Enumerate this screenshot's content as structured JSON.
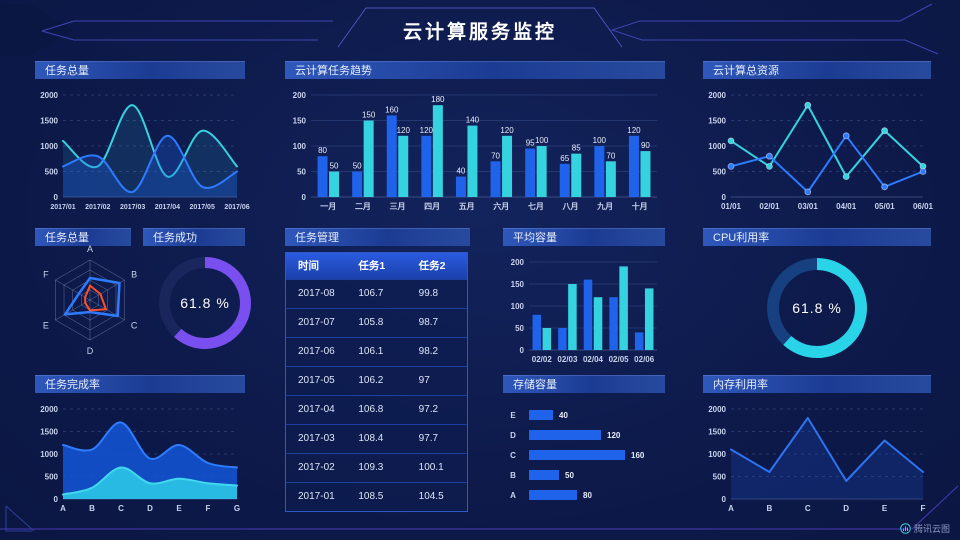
{
  "header": {
    "title": "云计算服务监控"
  },
  "footer": {
    "brand": "腾讯云图"
  },
  "colors": {
    "background": "#0d1a4b",
    "panel_title_bar": "#2f58bb",
    "blue": "#1e63ea",
    "cyan": "#35d3df",
    "purple": "#7a4ff0",
    "orange": "#ff4f2a",
    "table_border": "#2e57c8"
  },
  "panels": {
    "task_total_top": {
      "title": "任务总量"
    },
    "task_trend": {
      "title": "云计算任务趋势"
    },
    "total_resources": {
      "title": "云计算总资源"
    },
    "task_total_radar": {
      "title": "任务总量"
    },
    "task_success": {
      "title": "任务成功",
      "value_label": "61.8 %"
    },
    "task_manage": {
      "title": "任务管理",
      "table": {
        "headers": [
          "时间",
          "任务1",
          "任务2"
        ],
        "rows": [
          [
            "2017-08",
            "106.7",
            "99.8"
          ],
          [
            "2017-07",
            "105.8",
            "98.7"
          ],
          [
            "2017-06",
            "106.1",
            "98.2"
          ],
          [
            "2017-05",
            "106.2",
            "97"
          ],
          [
            "2017-04",
            "106.8",
            "97.2"
          ],
          [
            "2017-03",
            "108.4",
            "97.7"
          ],
          [
            "2017-02",
            "109.3",
            "100.1"
          ],
          [
            "2017-01",
            "108.5",
            "104.5"
          ]
        ]
      }
    },
    "avg_capacity": {
      "title": "平均容量"
    },
    "cpu_usage": {
      "title": "CPU利用率",
      "value_label": "61.8 %"
    },
    "task_completion": {
      "title": "任务完成率"
    },
    "storage": {
      "title": "存储容量"
    },
    "memory": {
      "title": "内存利用率"
    }
  },
  "chart_data": [
    {
      "id": "task-total-line",
      "title": "任务总量",
      "type": "line",
      "smooth": true,
      "grid": "dashed",
      "x": [
        "2017/01",
        "2017/02",
        "2017/03",
        "2017/04",
        "2017/05",
        "2017/06"
      ],
      "yticks": [
        0,
        500,
        1000,
        1500,
        2000
      ],
      "xfont": 7,
      "series": [
        {
          "name": "cyan",
          "color": "#35d3df",
          "width": 2,
          "values": [
            1100,
            600,
            1800,
            400,
            1300,
            600
          ],
          "fill": "rgba(53,200,230,0.12)"
        },
        {
          "name": "blue",
          "color": "#2e7bff",
          "width": 2,
          "values": [
            600,
            800,
            100,
            1200,
            200,
            500
          ],
          "fill": "rgba(30,95,230,0.30)"
        }
      ]
    },
    {
      "id": "task-trend-bar",
      "title": "云计算任务趋势",
      "type": "bar",
      "grid": "solid",
      "labels": true,
      "x": [
        "一月",
        "二月",
        "三月",
        "四月",
        "五月",
        "六月",
        "七月",
        "八月",
        "九月",
        "十月"
      ],
      "yticks": [
        0,
        50,
        100,
        150,
        200
      ],
      "series": [
        {
          "name": "任务1",
          "color": "#1e63ea",
          "values": [
            80,
            50,
            160,
            120,
            40,
            70,
            95,
            65,
            100,
            120
          ]
        },
        {
          "name": "任务2",
          "color": "#35d3df",
          "values": [
            50,
            150,
            120,
            180,
            140,
            120,
            100,
            85,
            70,
            90
          ]
        }
      ]
    },
    {
      "id": "total-resources-line",
      "title": "云计算总资源",
      "type": "line",
      "smooth": false,
      "markers": true,
      "grid": "dashed",
      "x": [
        "01/01",
        "02/01",
        "03/01",
        "04/01",
        "05/01",
        "06/01"
      ],
      "yticks": [
        0,
        500,
        1000,
        1500,
        2000
      ],
      "xfont": 8,
      "series": [
        {
          "name": "cyan",
          "color": "#35d3df",
          "width": 2,
          "values": [
            1100,
            600,
            1800,
            400,
            1300,
            600
          ]
        },
        {
          "name": "blue",
          "color": "#2e7bff",
          "width": 2,
          "values": [
            600,
            800,
            100,
            1200,
            200,
            500
          ]
        }
      ]
    },
    {
      "id": "task-radar",
      "title": "任务总量",
      "type": "radar",
      "axes": [
        "A",
        "B",
        "C",
        "D",
        "E",
        "F"
      ],
      "max": 100,
      "series": [
        {
          "name": "blue",
          "color": "#2e7bff",
          "width": 2.5,
          "values": [
            55,
            85,
            80,
            30,
            72,
            32
          ]
        },
        {
          "name": "orange",
          "color": "#ff4f2a",
          "width": 2,
          "values": [
            36,
            30,
            46,
            26,
            14,
            14
          ]
        }
      ]
    },
    {
      "id": "task-success-donut",
      "title": "任务成功",
      "type": "donut",
      "value": 61.8,
      "label": "61.8 %",
      "color": "#7a4ff0",
      "track": "rgba(60,70,140,0.25)",
      "thickness": 11
    },
    {
      "id": "avg-capacity-bar",
      "title": "平均容量",
      "type": "bar",
      "grid": "solid",
      "labels": false,
      "x": [
        "02/02",
        "02/03",
        "02/04",
        "02/05",
        "02/06"
      ],
      "yticks": [
        0,
        50,
        100,
        150,
        200
      ],
      "series": [
        {
          "name": "blue",
          "color": "#1e63ea",
          "values": [
            80,
            50,
            160,
            120,
            40
          ]
        },
        {
          "name": "cyan",
          "color": "#35d3df",
          "values": [
            50,
            150,
            120,
            190,
            140
          ]
        }
      ]
    },
    {
      "id": "cpu-donut",
      "title": "CPU利用率",
      "type": "donut",
      "value": 61.8,
      "label": "61.8 %",
      "color": "#29d3e8",
      "track": "#16407f",
      "thickness": 12
    },
    {
      "id": "completion-area",
      "title": "任务完成率",
      "type": "line",
      "smooth": true,
      "grid": "dashed",
      "x": [
        "A",
        "B",
        "C",
        "D",
        "E",
        "F",
        "G"
      ],
      "yticks": [
        0,
        500,
        1000,
        1500,
        2000
      ],
      "series": [
        {
          "name": "blue",
          "color": "#2f7dff",
          "width": 2,
          "values": [
            1200,
            1100,
            1700,
            900,
            1200,
            800,
            700
          ],
          "fill": "rgba(19,86,216,0.85)"
        },
        {
          "name": "cyan",
          "color": "#41d8ee",
          "width": 2,
          "values": [
            100,
            250,
            700,
            350,
            450,
            350,
            300
          ],
          "fill": "rgba(44,198,232,0.9)"
        }
      ]
    },
    {
      "id": "storage-hbar",
      "title": "存储容量",
      "type": "hbar",
      "categories": [
        "E",
        "D",
        "C",
        "B",
        "A"
      ],
      "values": [
        40,
        120,
        160,
        50,
        80
      ],
      "xmax": 170,
      "color": "#1e63ea"
    },
    {
      "id": "memory-line",
      "title": "内存利用率",
      "type": "line",
      "smooth": false,
      "grid": "dashed",
      "x": [
        "A",
        "B",
        "C",
        "D",
        "E",
        "F"
      ],
      "yticks": [
        0,
        500,
        1000,
        1500,
        2000
      ],
      "series": [
        {
          "name": "blue",
          "color": "#2e73f0",
          "width": 2,
          "values": [
            1100,
            600,
            1800,
            400,
            1300,
            600
          ],
          "fill": "rgba(25,70,180,0.3)"
        }
      ]
    }
  ]
}
